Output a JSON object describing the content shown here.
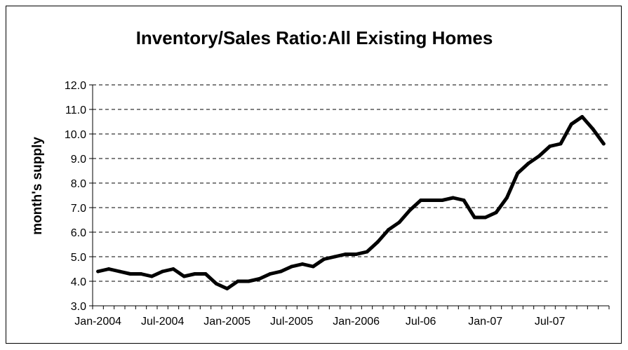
{
  "chart_data": {
    "type": "line",
    "title": "Inventory/Sales Ratio:All Existing Homes",
    "xlabel": "",
    "ylabel": "month's supply",
    "ylim": [
      3.0,
      12.0
    ],
    "y_ticks": [
      "3.0",
      "4.0",
      "5.0",
      "6.0",
      "7.0",
      "8.0",
      "9.0",
      "10.0",
      "11.0",
      "12.0"
    ],
    "x_tick_labels": [
      {
        "label": "Jan-2004",
        "index": 0
      },
      {
        "label": "Jul-2004",
        "index": 6
      },
      {
        "label": "Jan-2005",
        "index": 12
      },
      {
        "label": "Jul-2005",
        "index": 18
      },
      {
        "label": "Jan-2006",
        "index": 24
      },
      {
        "label": "Jul-06",
        "index": 30
      },
      {
        "label": "Jan-07",
        "index": 36
      },
      {
        "label": "Jul-07",
        "index": 42
      }
    ],
    "grid": "horizontal dashed",
    "line_color": "#000000",
    "series": [
      {
        "values": [
          4.4,
          4.5,
          4.4,
          4.3,
          4.3,
          4.2,
          4.4,
          4.5,
          4.2,
          4.3,
          4.3,
          3.9,
          3.7,
          4.0,
          4.0,
          4.1,
          4.3,
          4.4,
          4.6,
          4.7,
          4.6,
          4.9,
          5.0,
          5.1,
          5.1,
          5.2,
          5.6,
          6.1,
          6.4,
          6.9,
          7.3,
          7.3,
          7.3,
          7.4,
          7.3,
          6.6,
          6.6,
          6.8,
          7.4,
          8.4,
          8.8,
          9.1,
          9.5,
          9.6,
          10.4,
          10.7,
          10.2,
          9.6
        ]
      }
    ]
  }
}
